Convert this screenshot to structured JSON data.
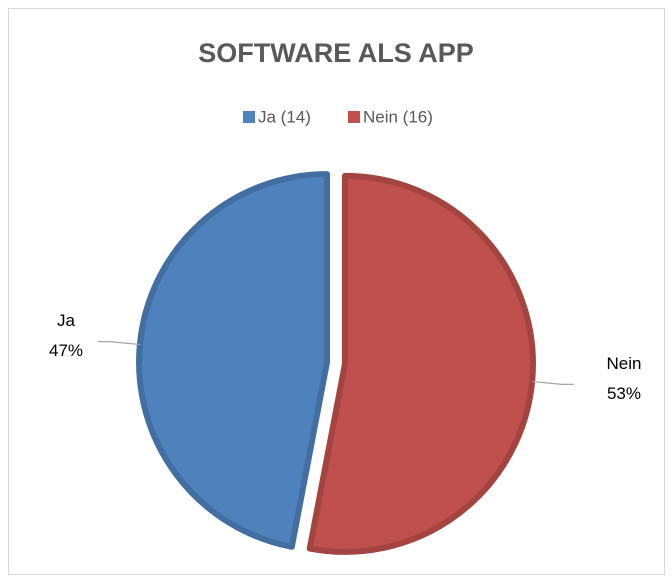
{
  "chart_data": {
    "type": "pie",
    "title": "SOFTWARE ALS APP",
    "categories": [
      "Ja",
      "Nein"
    ],
    "legend": [
      "Ja (14)",
      "Nein (16)"
    ],
    "values": [
      47,
      53
    ],
    "value_labels": [
      "47%",
      "53%"
    ],
    "colors": [
      "#4f81bd",
      "#c0504d"
    ],
    "legend_position": "top"
  }
}
